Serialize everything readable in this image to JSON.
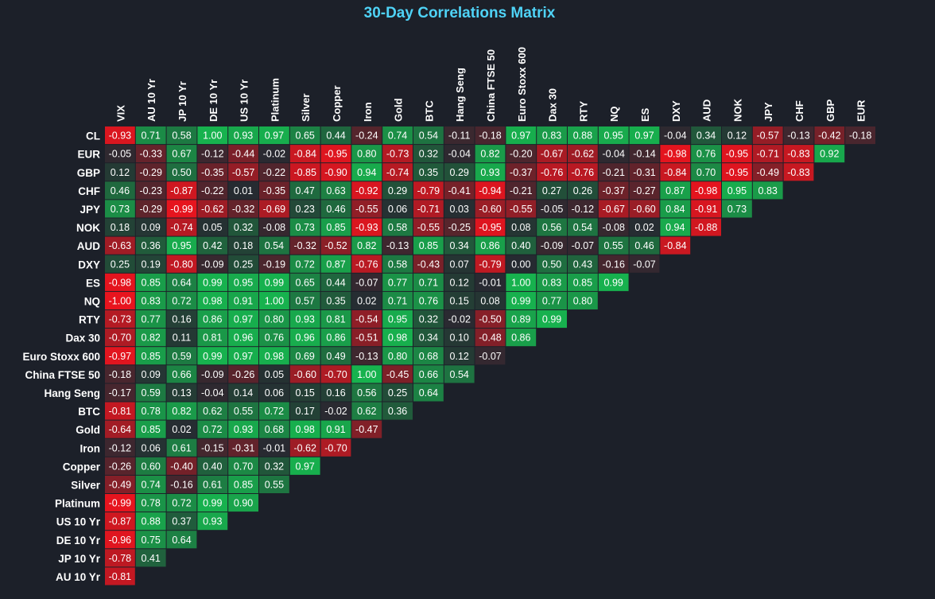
{
  "chart_data": {
    "type": "heatmap",
    "title": "30-Day Correlations Matrix",
    "xlabel": "",
    "ylabel": "",
    "x_categories": [
      "VIX",
      "AU 10 Yr",
      "JP 10 Yr",
      "DE 10 Yr",
      "US 10 Yr",
      "Platinum",
      "Silver",
      "Copper",
      "Iron",
      "Gold",
      "BTC",
      "Hang Seng",
      "China FTSE 50",
      "Euro Stoxx 600",
      "Dax 30",
      "RTY",
      "NQ",
      "ES",
      "DXY",
      "AUD",
      "NOK",
      "JPY",
      "CHF",
      "GBP",
      "EUR"
    ],
    "y_categories": [
      "CL",
      "EUR",
      "GBP",
      "CHF",
      "JPY",
      "NOK",
      "AUD",
      "DXY",
      "ES",
      "NQ",
      "RTY",
      "Dax 30",
      "Euro Stoxx 600",
      "China FTSE 50",
      "Hang Seng",
      "BTC",
      "Gold",
      "Iron",
      "Copper",
      "Silver",
      "Platinum",
      "US 10 Yr",
      "DE 10 Yr",
      "JP 10 Yr",
      "AU 10 Yr"
    ],
    "value_range": [
      -1,
      1
    ],
    "colors": {
      "negative": "#e8141e",
      "positive": "#17b24e",
      "neutral": "#262a31",
      "background": "#1c2029",
      "title": "#4fd3f7",
      "text": "#ffffff"
    },
    "values": [
      [
        -0.93,
        0.71,
        0.58,
        1.0,
        0.93,
        0.97,
        0.65,
        0.44,
        -0.24,
        0.74,
        0.54,
        -0.11,
        -0.18,
        0.97,
        0.83,
        0.88,
        0.95,
        0.97,
        -0.04,
        0.34,
        0.12,
        -0.57,
        -0.13,
        -0.42,
        -0.18
      ],
      [
        -0.05,
        -0.33,
        0.67,
        -0.12,
        -0.44,
        -0.02,
        -0.84,
        -0.95,
        0.8,
        -0.73,
        0.32,
        -0.04,
        0.82,
        -0.2,
        -0.67,
        -0.62,
        -0.04,
        -0.14,
        -0.98,
        0.76,
        -0.95,
        -0.71,
        -0.83,
        0.92
      ],
      [
        0.12,
        -0.29,
        0.5,
        -0.35,
        -0.57,
        -0.22,
        -0.85,
        -0.9,
        0.94,
        -0.74,
        0.35,
        0.29,
        0.93,
        -0.37,
        -0.76,
        -0.76,
        -0.21,
        -0.31,
        -0.84,
        0.7,
        -0.95,
        -0.49,
        -0.83
      ],
      [
        0.46,
        -0.23,
        -0.87,
        -0.22,
        0.01,
        -0.35,
        0.47,
        0.63,
        -0.92,
        0.29,
        -0.79,
        -0.41,
        -0.94,
        -0.21,
        0.27,
        0.26,
        -0.37,
        -0.27,
        0.87,
        -0.98,
        0.95,
        0.83
      ],
      [
        0.73,
        -0.29,
        -0.99,
        -0.62,
        -0.32,
        -0.69,
        0.23,
        0.46,
        -0.55,
        0.06,
        -0.71,
        0.03,
        -0.6,
        -0.55,
        -0.05,
        -0.12,
        -0.67,
        -0.6,
        0.84,
        -0.91,
        0.73
      ],
      [
        0.18,
        0.09,
        -0.74,
        0.05,
        0.32,
        -0.08,
        0.73,
        0.85,
        -0.93,
        0.58,
        -0.55,
        -0.25,
        -0.95,
        0.08,
        0.56,
        0.54,
        -0.08,
        0.02,
        0.94,
        -0.88
      ],
      [
        -0.63,
        0.36,
        0.95,
        0.42,
        0.18,
        0.54,
        -0.32,
        -0.52,
        0.82,
        -0.13,
        0.85,
        0.34,
        0.86,
        0.4,
        -0.09,
        -0.07,
        0.55,
        0.46,
        -0.84
      ],
      [
        0.25,
        0.19,
        -0.8,
        -0.09,
        0.25,
        -0.19,
        0.72,
        0.87,
        -0.76,
        0.58,
        -0.43,
        0.07,
        -0.79,
        0.0,
        0.5,
        0.43,
        -0.16,
        -0.07
      ],
      [
        -0.98,
        0.85,
        0.64,
        0.99,
        0.95,
        0.99,
        0.65,
        0.44,
        -0.07,
        0.77,
        0.71,
        0.12,
        -0.01,
        1.0,
        0.83,
        0.85,
        0.99
      ],
      [
        -1.0,
        0.83,
        0.72,
        0.98,
        0.91,
        1.0,
        0.57,
        0.35,
        0.02,
        0.71,
        0.76,
        0.15,
        0.08,
        0.99,
        0.77,
        0.8
      ],
      [
        -0.73,
        0.77,
        0.16,
        0.86,
        0.97,
        0.8,
        0.93,
        0.81,
        -0.54,
        0.95,
        0.32,
        -0.02,
        -0.5,
        0.89,
        0.99
      ],
      [
        -0.7,
        0.82,
        0.11,
        0.81,
        0.96,
        0.76,
        0.96,
        0.86,
        -0.51,
        0.98,
        0.34,
        0.1,
        -0.48,
        0.86
      ],
      [
        -0.97,
        0.85,
        0.59,
        0.99,
        0.97,
        0.98,
        0.69,
        0.49,
        -0.13,
        0.8,
        0.68,
        0.12,
        -0.07
      ],
      [
        -0.18,
        0.09,
        0.66,
        -0.09,
        -0.26,
        0.05,
        -0.6,
        -0.7,
        1.0,
        -0.45,
        0.66,
        0.54
      ],
      [
        -0.17,
        0.59,
        0.13,
        -0.04,
        0.14,
        0.06,
        0.15,
        0.16,
        0.56,
        0.25,
        0.64
      ],
      [
        -0.81,
        0.78,
        0.82,
        0.62,
        0.55,
        0.72,
        0.17,
        -0.02,
        0.62,
        0.36
      ],
      [
        -0.64,
        0.85,
        0.02,
        0.72,
        0.93,
        0.68,
        0.98,
        0.91,
        -0.47
      ],
      [
        -0.12,
        0.06,
        0.61,
        -0.15,
        -0.31,
        -0.01,
        -0.62,
        -0.7
      ],
      [
        -0.26,
        0.6,
        -0.4,
        0.4,
        0.7,
        0.32,
        0.97
      ],
      [
        -0.49,
        0.74,
        -0.16,
        0.61,
        0.85,
        0.55
      ],
      [
        -0.99,
        0.78,
        0.72,
        0.99,
        0.9
      ],
      [
        -0.87,
        0.88,
        0.37,
        0.93
      ],
      [
        -0.96,
        0.75,
        0.64
      ],
      [
        -0.78,
        0.41
      ],
      [
        -0.81
      ]
    ]
  }
}
